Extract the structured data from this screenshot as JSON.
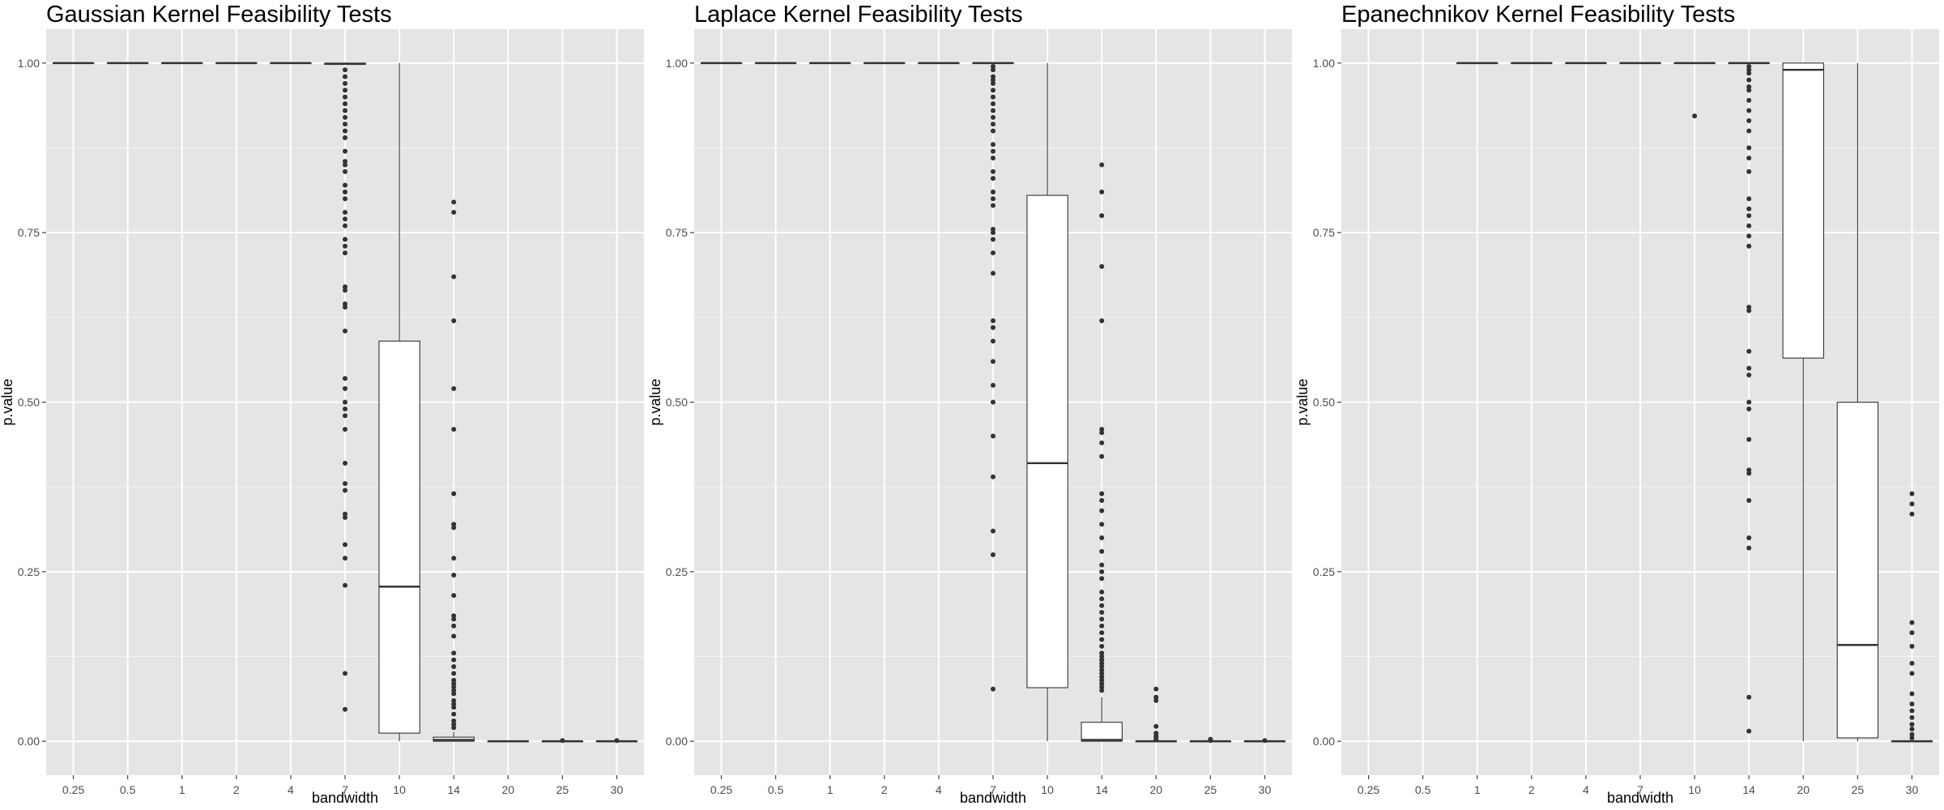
{
  "chart_data": [
    {
      "type": "boxplot",
      "title": "Gaussian Kernel Feasibility Tests",
      "xlabel": "bandwidth",
      "ylabel": "p.value",
      "ylim": [
        -0.05,
        1.05
      ],
      "yticks": [
        "0.00",
        "0.25",
        "0.50",
        "0.75",
        "1.00"
      ],
      "grid": true,
      "categories": [
        "0.25",
        "0.5",
        "1",
        "2",
        "4",
        "7",
        "10",
        "14",
        "20",
        "25",
        "30"
      ],
      "boxes": [
        {
          "x": "0.25",
          "lower": 1.0,
          "q1": 1.0,
          "median": 1.0,
          "q3": 1.0,
          "upper": 1.0,
          "outliers": []
        },
        {
          "x": "0.5",
          "lower": 1.0,
          "q1": 1.0,
          "median": 1.0,
          "q3": 1.0,
          "upper": 1.0,
          "outliers": []
        },
        {
          "x": "1",
          "lower": 1.0,
          "q1": 1.0,
          "median": 1.0,
          "q3": 1.0,
          "upper": 1.0,
          "outliers": []
        },
        {
          "x": "2",
          "lower": 1.0,
          "q1": 1.0,
          "median": 1.0,
          "q3": 1.0,
          "upper": 1.0,
          "outliers": []
        },
        {
          "x": "4",
          "lower": 1.0,
          "q1": 1.0,
          "median": 1.0,
          "q3": 1.0,
          "upper": 1.0,
          "outliers": []
        },
        {
          "x": "7",
          "lower": 0.998,
          "q1": 0.998,
          "median": 0.999,
          "q3": 1.0,
          "upper": 1.0,
          "outliers": [
            0.047,
            0.1,
            0.23,
            0.27,
            0.29,
            0.33,
            0.335,
            0.37,
            0.38,
            0.41,
            0.46,
            0.48,
            0.49,
            0.5,
            0.52,
            0.535,
            0.605,
            0.64,
            0.645,
            0.665,
            0.67,
            0.72,
            0.73,
            0.74,
            0.76,
            0.77,
            0.78,
            0.8,
            0.81,
            0.82,
            0.84,
            0.85,
            0.855,
            0.87,
            0.89,
            0.9,
            0.91,
            0.92,
            0.93,
            0.94,
            0.95,
            0.96,
            0.97,
            0.98,
            0.99
          ]
        },
        {
          "x": "10",
          "lower": 0.0,
          "q1": 0.012,
          "median": 0.228,
          "q3": 0.59,
          "upper": 1.0,
          "outliers": []
        },
        {
          "x": "14",
          "lower": 0.0,
          "q1": 0.0,
          "median": 0.002,
          "q3": 0.006,
          "upper": 0.014,
          "outliers": [
            0.02,
            0.025,
            0.03,
            0.04,
            0.05,
            0.055,
            0.06,
            0.07,
            0.075,
            0.08,
            0.085,
            0.09,
            0.1,
            0.11,
            0.12,
            0.13,
            0.155,
            0.17,
            0.18,
            0.185,
            0.215,
            0.245,
            0.27,
            0.315,
            0.32,
            0.365,
            0.46,
            0.52,
            0.62,
            0.685,
            0.78,
            0.795
          ]
        },
        {
          "x": "20",
          "lower": 0.0,
          "q1": 0.0,
          "median": 0.0,
          "q3": 0.0,
          "upper": 0.0,
          "outliers": []
        },
        {
          "x": "25",
          "lower": 0.0,
          "q1": 0.0,
          "median": 0.0,
          "q3": 0.0,
          "upper": 0.0,
          "outliers": [
            0.001
          ]
        },
        {
          "x": "30",
          "lower": 0.0,
          "q1": 0.0,
          "median": 0.0,
          "q3": 0.0,
          "upper": 0.0,
          "outliers": [
            0.001
          ]
        }
      ]
    },
    {
      "type": "boxplot",
      "title": "Laplace Kernel Feasibility Tests",
      "xlabel": "bandwidth",
      "ylabel": "p.value",
      "ylim": [
        -0.05,
        1.05
      ],
      "yticks": [
        "0.00",
        "0.25",
        "0.50",
        "0.75",
        "1.00"
      ],
      "grid": true,
      "categories": [
        "0.25",
        "0.5",
        "1",
        "2",
        "4",
        "7",
        "10",
        "14",
        "20",
        "25",
        "30"
      ],
      "boxes": [
        {
          "x": "0.25",
          "lower": 1.0,
          "q1": 1.0,
          "median": 1.0,
          "q3": 1.0,
          "upper": 1.0,
          "outliers": []
        },
        {
          "x": "0.5",
          "lower": 1.0,
          "q1": 1.0,
          "median": 1.0,
          "q3": 1.0,
          "upper": 1.0,
          "outliers": []
        },
        {
          "x": "1",
          "lower": 1.0,
          "q1": 1.0,
          "median": 1.0,
          "q3": 1.0,
          "upper": 1.0,
          "outliers": []
        },
        {
          "x": "2",
          "lower": 1.0,
          "q1": 1.0,
          "median": 1.0,
          "q3": 1.0,
          "upper": 1.0,
          "outliers": []
        },
        {
          "x": "4",
          "lower": 1.0,
          "q1": 1.0,
          "median": 1.0,
          "q3": 1.0,
          "upper": 1.0,
          "outliers": []
        },
        {
          "x": "7",
          "lower": 1.0,
          "q1": 1.0,
          "median": 1.0,
          "q3": 1.0,
          "upper": 1.0,
          "outliers": [
            0.077,
            0.275,
            0.31,
            0.39,
            0.45,
            0.5,
            0.525,
            0.56,
            0.59,
            0.61,
            0.62,
            0.69,
            0.72,
            0.74,
            0.75,
            0.755,
            0.79,
            0.8,
            0.81,
            0.83,
            0.84,
            0.86,
            0.87,
            0.88,
            0.9,
            0.91,
            0.92,
            0.93,
            0.94,
            0.95,
            0.96,
            0.97,
            0.975,
            0.98,
            0.99,
            0.995
          ]
        },
        {
          "x": "10",
          "lower": 0.0,
          "q1": 0.079,
          "median": 0.41,
          "q3": 0.805,
          "upper": 1.0,
          "outliers": []
        },
        {
          "x": "14",
          "lower": 0.0,
          "q1": 0.0,
          "median": 0.002,
          "q3": 0.028,
          "upper": 0.065,
          "outliers": [
            0.075,
            0.08,
            0.085,
            0.09,
            0.095,
            0.1,
            0.105,
            0.11,
            0.115,
            0.12,
            0.125,
            0.13,
            0.14,
            0.15,
            0.16,
            0.17,
            0.18,
            0.19,
            0.2,
            0.21,
            0.22,
            0.24,
            0.25,
            0.26,
            0.28,
            0.3,
            0.32,
            0.34,
            0.355,
            0.365,
            0.42,
            0.44,
            0.455,
            0.46,
            0.62,
            0.7,
            0.775,
            0.81,
            0.85
          ]
        },
        {
          "x": "20",
          "lower": 0.0,
          "q1": 0.0,
          "median": 0.0,
          "q3": 0.0,
          "upper": 0.0,
          "outliers": [
            0.002,
            0.004,
            0.006,
            0.008,
            0.012,
            0.022,
            0.06,
            0.065,
            0.077
          ]
        },
        {
          "x": "25",
          "lower": 0.0,
          "q1": 0.0,
          "median": 0.0,
          "q3": 0.0,
          "upper": 0.0,
          "outliers": [
            0.001,
            0.003
          ]
        },
        {
          "x": "30",
          "lower": 0.0,
          "q1": 0.0,
          "median": 0.0,
          "q3": 0.0,
          "upper": 0.0,
          "outliers": [
            0.001
          ]
        }
      ]
    },
    {
      "type": "boxplot",
      "title": "Epanechnikov Kernel Feasibility Tests",
      "xlabel": "bandwidth",
      "ylabel": "p.value",
      "ylim": [
        -0.05,
        1.05
      ],
      "yticks": [
        "0.00",
        "0.25",
        "0.50",
        "0.75",
        "1.00"
      ],
      "grid": true,
      "categories": [
        "0.25",
        "0.5",
        "1",
        "2",
        "4",
        "7",
        "10",
        "14",
        "20",
        "25",
        "30"
      ],
      "boxes": [
        {
          "x": "0.25",
          "empty": true
        },
        {
          "x": "0.5",
          "empty": true
        },
        {
          "x": "1",
          "lower": 1.0,
          "q1": 1.0,
          "median": 1.0,
          "q3": 1.0,
          "upper": 1.0,
          "outliers": []
        },
        {
          "x": "2",
          "lower": 1.0,
          "q1": 1.0,
          "median": 1.0,
          "q3": 1.0,
          "upper": 1.0,
          "outliers": []
        },
        {
          "x": "4",
          "lower": 1.0,
          "q1": 1.0,
          "median": 1.0,
          "q3": 1.0,
          "upper": 1.0,
          "outliers": []
        },
        {
          "x": "7",
          "lower": 1.0,
          "q1": 1.0,
          "median": 1.0,
          "q3": 1.0,
          "upper": 1.0,
          "outliers": []
        },
        {
          "x": "10",
          "lower": 1.0,
          "q1": 1.0,
          "median": 1.0,
          "q3": 1.0,
          "upper": 1.0,
          "outliers": [
            0.922
          ]
        },
        {
          "x": "14",
          "lower": 1.0,
          "q1": 1.0,
          "median": 1.0,
          "q3": 1.0,
          "upper": 1.0,
          "outliers": [
            0.015,
            0.065,
            0.285,
            0.3,
            0.355,
            0.395,
            0.4,
            0.445,
            0.49,
            0.5,
            0.54,
            0.55,
            0.575,
            0.635,
            0.64,
            0.73,
            0.745,
            0.76,
            0.775,
            0.785,
            0.8,
            0.84,
            0.86,
            0.875,
            0.9,
            0.915,
            0.93,
            0.945,
            0.96,
            0.965,
            0.975,
            0.985,
            0.99,
            0.995
          ]
        },
        {
          "x": "20",
          "lower": 0.0,
          "q1": 0.565,
          "median": 0.99,
          "q3": 1.0,
          "upper": 1.0,
          "outliers": []
        },
        {
          "x": "25",
          "lower": 0.0,
          "q1": 0.005,
          "median": 0.142,
          "q3": 0.5,
          "upper": 1.0,
          "outliers": []
        },
        {
          "x": "30",
          "lower": 0.0,
          "q1": 0.0,
          "median": 0.0,
          "q3": 0.0,
          "upper": 0.0,
          "outliers": [
            0.005,
            0.01,
            0.018,
            0.025,
            0.035,
            0.045,
            0.055,
            0.07,
            0.1,
            0.115,
            0.14,
            0.16,
            0.175,
            0.335,
            0.35,
            0.365
          ]
        }
      ]
    }
  ]
}
